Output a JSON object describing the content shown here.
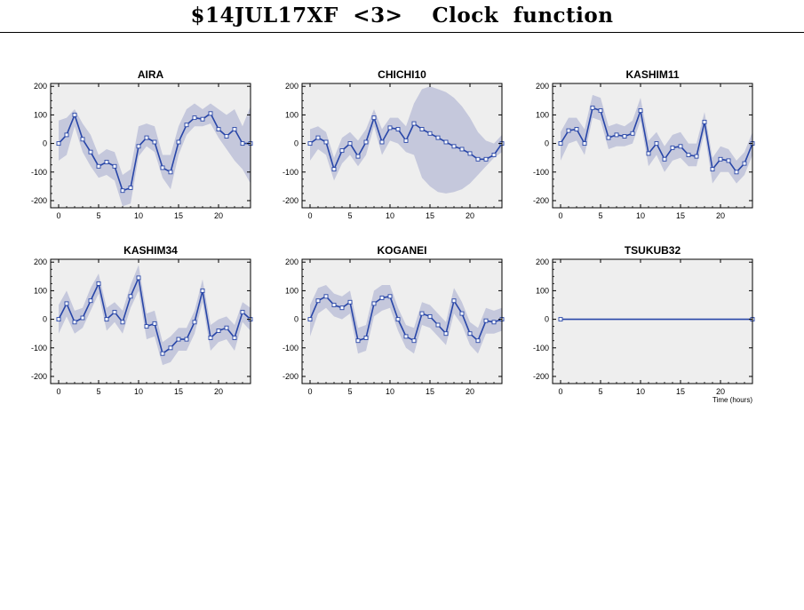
{
  "page": {
    "title": "$14JUL17XF <3>  Clock function"
  },
  "colors": {
    "plot_background": "#eeeeee",
    "band": "#c5c8dc",
    "line": "#2846a8",
    "marker_fill": "#ffffff"
  },
  "chart_data": [
    {
      "type": "line",
      "title": "AIRA",
      "xlabel": "",
      "ylabel": "",
      "xlim": [
        -1,
        24
      ],
      "ylim": [
        -225,
        210
      ],
      "xticks": [
        0,
        5,
        10,
        15,
        20
      ],
      "yticks": [
        -200,
        -100,
        0,
        100,
        200
      ],
      "x": [
        0,
        1,
        2,
        3,
        4,
        5,
        6,
        7,
        8,
        9,
        10,
        11,
        12,
        13,
        14,
        15,
        16,
        17,
        18,
        19,
        20,
        21,
        22,
        23,
        24
      ],
      "values": [
        0,
        30,
        100,
        15,
        -30,
        -80,
        -65,
        -80,
        -165,
        -155,
        -10,
        20,
        5,
        -85,
        -100,
        5,
        65,
        90,
        85,
        105,
        50,
        25,
        50,
        0,
        0
      ],
      "band": {
        "lower": [
          -60,
          -40,
          60,
          -30,
          -80,
          -120,
          -110,
          -130,
          -220,
          -210,
          -45,
          -10,
          -30,
          -120,
          -160,
          -40,
          30,
          60,
          60,
          70,
          20,
          -20,
          -60,
          -90,
          -140
        ],
        "upper": [
          80,
          90,
          120,
          70,
          30,
          -40,
          -20,
          -30,
          -110,
          -90,
          60,
          70,
          60,
          -40,
          -40,
          60,
          120,
          140,
          120,
          140,
          120,
          100,
          120,
          60,
          130
        ]
      }
    },
    {
      "type": "line",
      "title": "CHICHI10",
      "xlabel": "",
      "ylabel": "",
      "xlim": [
        -1,
        24
      ],
      "ylim": [
        -225,
        210
      ],
      "xticks": [
        0,
        5,
        10,
        15,
        20
      ],
      "yticks": [
        -200,
        -100,
        0,
        100,
        200
      ],
      "x": [
        0,
        1,
        2,
        3,
        4,
        5,
        6,
        7,
        8,
        9,
        10,
        11,
        12,
        13,
        14,
        15,
        16,
        17,
        18,
        19,
        20,
        21,
        22,
        23,
        24
      ],
      "values": [
        0,
        20,
        5,
        -90,
        -25,
        0,
        -45,
        5,
        90,
        5,
        55,
        50,
        10,
        70,
        50,
        35,
        20,
        5,
        -10,
        -20,
        -35,
        -55,
        -55,
        -40,
        0
      ],
      "band": {
        "lower": [
          -60,
          -20,
          -40,
          -130,
          -70,
          -40,
          -80,
          -40,
          60,
          -40,
          10,
          0,
          -30,
          -40,
          -120,
          -150,
          -170,
          -175,
          -170,
          -160,
          -140,
          -110,
          -80,
          -50,
          -30
        ],
        "upper": [
          50,
          60,
          40,
          -50,
          20,
          40,
          10,
          50,
          120,
          50,
          90,
          90,
          60,
          140,
          190,
          200,
          190,
          180,
          160,
          130,
          90,
          40,
          10,
          0,
          30
        ]
      }
    },
    {
      "type": "line",
      "title": "KASHIM11",
      "xlabel": "",
      "ylabel": "",
      "xlim": [
        -1,
        24
      ],
      "ylim": [
        -225,
        210
      ],
      "xticks": [
        0,
        5,
        10,
        15,
        20
      ],
      "yticks": [
        -200,
        -100,
        0,
        100,
        200
      ],
      "x": [
        0,
        1,
        2,
        3,
        4,
        5,
        6,
        7,
        8,
        9,
        10,
        11,
        12,
        13,
        14,
        15,
        16,
        17,
        18,
        19,
        20,
        21,
        22,
        23,
        24
      ],
      "values": [
        0,
        45,
        50,
        0,
        125,
        115,
        20,
        30,
        25,
        35,
        115,
        -35,
        0,
        -55,
        -15,
        -10,
        -40,
        -45,
        75,
        -90,
        -55,
        -60,
        -100,
        -70,
        0
      ],
      "band": {
        "lower": [
          -60,
          0,
          10,
          -40,
          90,
          80,
          -20,
          -10,
          -10,
          0,
          80,
          -80,
          -40,
          -100,
          -60,
          -50,
          -80,
          -80,
          40,
          -140,
          -100,
          -100,
          -140,
          -110,
          -40
        ],
        "upper": [
          40,
          90,
          90,
          50,
          170,
          160,
          60,
          70,
          60,
          80,
          160,
          10,
          40,
          -10,
          30,
          40,
          0,
          0,
          110,
          -50,
          -10,
          -20,
          -60,
          -30,
          40
        ]
      }
    },
    {
      "type": "line",
      "title": "KASHIM34",
      "xlabel": "",
      "ylabel": "",
      "xlim": [
        -1,
        24
      ],
      "ylim": [
        -225,
        210
      ],
      "xticks": [
        0,
        5,
        10,
        15,
        20
      ],
      "yticks": [
        -200,
        -100,
        0,
        100,
        200
      ],
      "x": [
        0,
        1,
        2,
        3,
        4,
        5,
        6,
        7,
        8,
        9,
        10,
        11,
        12,
        13,
        14,
        15,
        16,
        17,
        18,
        19,
        20,
        21,
        22,
        23,
        24
      ],
      "values": [
        0,
        55,
        -10,
        5,
        65,
        125,
        0,
        25,
        -10,
        80,
        145,
        -25,
        -15,
        -120,
        -100,
        -70,
        -70,
        -10,
        100,
        -65,
        -40,
        -30,
        -65,
        25,
        0
      ],
      "band": {
        "lower": [
          -50,
          10,
          -50,
          -30,
          30,
          90,
          -40,
          -10,
          -50,
          40,
          100,
          -70,
          -60,
          -160,
          -150,
          -110,
          -110,
          -50,
          60,
          -110,
          -80,
          -70,
          -110,
          -10,
          -40
        ],
        "upper": [
          50,
          100,
          30,
          40,
          110,
          160,
          40,
          60,
          30,
          120,
          190,
          20,
          30,
          -80,
          -60,
          -30,
          -30,
          30,
          140,
          -20,
          0,
          10,
          -20,
          60,
          40
        ]
      }
    },
    {
      "type": "line",
      "title": "KOGANEI",
      "xlabel": "",
      "ylabel": "",
      "xlim": [
        -1,
        24
      ],
      "ylim": [
        -225,
        210
      ],
      "xticks": [
        0,
        5,
        10,
        15,
        20
      ],
      "yticks": [
        -200,
        -100,
        0,
        100,
        200
      ],
      "x": [
        0,
        1,
        2,
        3,
        4,
        5,
        6,
        7,
        8,
        9,
        10,
        11,
        12,
        13,
        14,
        15,
        16,
        17,
        18,
        19,
        20,
        21,
        22,
        23,
        24
      ],
      "values": [
        0,
        65,
        80,
        50,
        40,
        60,
        -75,
        -65,
        55,
        75,
        80,
        0,
        -60,
        -75,
        20,
        10,
        -20,
        -50,
        65,
        20,
        -50,
        -75,
        -5,
        -10,
        0
      ],
      "band": {
        "lower": [
          -60,
          20,
          40,
          10,
          0,
          20,
          -120,
          -110,
          10,
          30,
          40,
          -40,
          -100,
          -120,
          -20,
          -30,
          -60,
          -90,
          20,
          -20,
          -90,
          -120,
          -50,
          -50,
          -40
        ],
        "upper": [
          50,
          110,
          120,
          90,
          80,
          100,
          -30,
          -20,
          100,
          120,
          120,
          40,
          -20,
          -30,
          60,
          50,
          20,
          -10,
          110,
          60,
          -10,
          -30,
          40,
          30,
          40
        ]
      }
    },
    {
      "type": "line",
      "title": "TSUKUB32",
      "xlabel": "Time (hours)",
      "ylabel": "",
      "xlim": [
        -1,
        24
      ],
      "ylim": [
        -225,
        210
      ],
      "xticks": [
        0,
        5,
        10,
        15,
        20
      ],
      "yticks": [
        -200,
        -100,
        0,
        100,
        200
      ],
      "x": [
        0,
        24
      ],
      "values": [
        0,
        0
      ],
      "band": {
        "lower": [
          0,
          0
        ],
        "upper": [
          0,
          0
        ]
      }
    }
  ]
}
